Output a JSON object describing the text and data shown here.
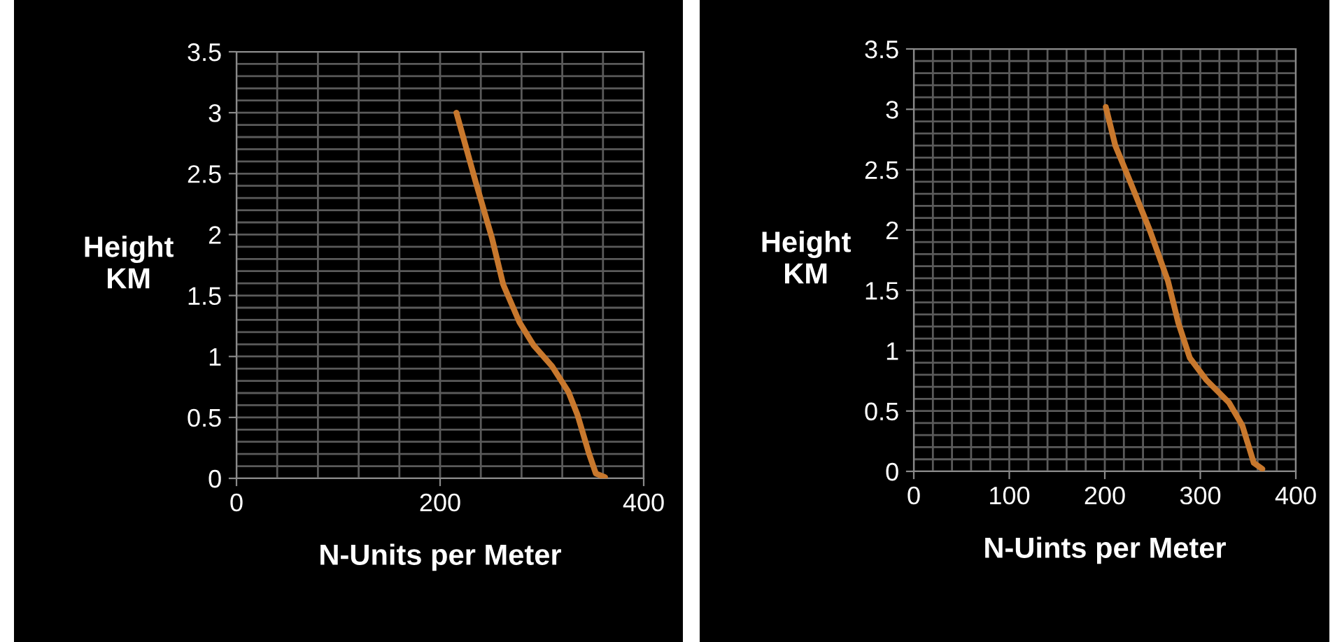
{
  "chart_data": [
    {
      "type": "line",
      "xlabel": "N-Units per Meter",
      "ylabel": "Height\nKM",
      "grid": true,
      "legend": false,
      "marker": "none",
      "line_style": "solid",
      "series": [
        {
          "color": "#c8782d",
          "x": [
            216,
            235,
            251,
            262,
            278,
            292,
            310,
            326,
            335,
            346,
            353,
            362
          ],
          "values": [
            3.0,
            2.43,
            1.97,
            1.59,
            1.28,
            1.09,
            0.92,
            0.71,
            0.52,
            0.21,
            0.04,
            0.01
          ]
        }
      ],
      "xlim": [
        0,
        400
      ],
      "ylim": [
        0,
        3.5
      ],
      "xticks": [
        0,
        {
          "value": 40,
          "label": null
        },
        {
          "value": 80,
          "label": null
        },
        {
          "value": 120,
          "label": null
        },
        {
          "value": 160,
          "label": null
        },
        200,
        {
          "value": 240,
          "label": null
        },
        {
          "value": 280,
          "label": null
        },
        {
          "value": 320,
          "label": null
        },
        {
          "value": 360,
          "label": null
        },
        400
      ],
      "yticks": [
        0,
        {
          "value": 0.1,
          "label": null
        },
        {
          "value": 0.2,
          "label": null
        },
        {
          "value": 0.3,
          "label": null
        },
        {
          "value": 0.4,
          "label": null
        },
        0.5,
        {
          "value": 0.6,
          "label": null
        },
        {
          "value": 0.7,
          "label": null
        },
        {
          "value": 0.8,
          "label": null
        },
        {
          "value": 0.9,
          "label": null
        },
        1,
        {
          "value": 1.1,
          "label": null
        },
        {
          "value": 1.2,
          "label": null
        },
        {
          "value": 1.3,
          "label": null
        },
        {
          "value": 1.4,
          "label": null
        },
        1.5,
        {
          "value": 1.6,
          "label": null
        },
        {
          "value": 1.7,
          "label": null
        },
        {
          "value": 1.8,
          "label": null
        },
        {
          "value": 1.9,
          "label": null
        },
        2,
        {
          "value": 2.1,
          "label": null
        },
        {
          "value": 2.2,
          "label": null
        },
        {
          "value": 2.3,
          "label": null
        },
        {
          "value": 2.4,
          "label": null
        },
        2.5,
        {
          "value": 2.6,
          "label": null
        },
        {
          "value": 2.7,
          "label": null
        },
        {
          "value": 2.8,
          "label": null
        },
        {
          "value": 2.9,
          "label": null
        },
        3,
        {
          "value": 3.1,
          "label": null
        },
        {
          "value": 3.2,
          "label": null
        },
        {
          "value": 3.3,
          "label": null
        },
        {
          "value": 3.4,
          "label": null
        },
        3.5
      ]
    },
    {
      "type": "line",
      "xlabel": "N-Uints per Meter",
      "ylabel": "Height\nKM",
      "grid": true,
      "legend": false,
      "marker": "none",
      "line_style": "solid",
      "series": [
        {
          "color": "#c8782d",
          "x": [
            201,
            211,
            223,
            247,
            266,
            277,
            289,
            306,
            330,
            344,
            356,
            365
          ],
          "values": [
            3.02,
            2.7,
            2.47,
            2.0,
            1.58,
            1.23,
            0.94,
            0.76,
            0.57,
            0.38,
            0.07,
            0.02
          ]
        }
      ],
      "xlim": [
        0,
        400
      ],
      "ylim": [
        0,
        3.5
      ],
      "xticks": [
        0,
        {
          "value": 20,
          "label": null
        },
        {
          "value": 40,
          "label": null
        },
        {
          "value": 60,
          "label": null
        },
        {
          "value": 80,
          "label": null
        },
        100,
        {
          "value": 120,
          "label": null
        },
        {
          "value": 140,
          "label": null
        },
        {
          "value": 160,
          "label": null
        },
        {
          "value": 180,
          "label": null
        },
        200,
        {
          "value": 220,
          "label": null
        },
        {
          "value": 240,
          "label": null
        },
        {
          "value": 260,
          "label": null
        },
        {
          "value": 280,
          "label": null
        },
        300,
        {
          "value": 320,
          "label": null
        },
        {
          "value": 340,
          "label": null
        },
        {
          "value": 360,
          "label": null
        },
        {
          "value": 380,
          "label": null
        },
        400
      ],
      "yticks": [
        0,
        {
          "value": 0.1,
          "label": null
        },
        {
          "value": 0.2,
          "label": null
        },
        {
          "value": 0.3,
          "label": null
        },
        {
          "value": 0.4,
          "label": null
        },
        0.5,
        {
          "value": 0.6,
          "label": null
        },
        {
          "value": 0.7,
          "label": null
        },
        {
          "value": 0.8,
          "label": null
        },
        {
          "value": 0.9,
          "label": null
        },
        1,
        {
          "value": 1.1,
          "label": null
        },
        {
          "value": 1.2,
          "label": null
        },
        {
          "value": 1.3,
          "label": null
        },
        {
          "value": 1.4,
          "label": null
        },
        1.5,
        {
          "value": 1.6,
          "label": null
        },
        {
          "value": 1.7,
          "label": null
        },
        {
          "value": 1.8,
          "label": null
        },
        {
          "value": 1.9,
          "label": null
        },
        2,
        {
          "value": 2.1,
          "label": null
        },
        {
          "value": 2.2,
          "label": null
        },
        {
          "value": 2.3,
          "label": null
        },
        {
          "value": 2.4,
          "label": null
        },
        2.5,
        {
          "value": 2.6,
          "label": null
        },
        {
          "value": 2.7,
          "label": null
        },
        {
          "value": 2.8,
          "label": null
        },
        {
          "value": 2.9,
          "label": null
        },
        3,
        {
          "value": 3.1,
          "label": null
        },
        {
          "value": 3.2,
          "label": null
        },
        {
          "value": 3.3,
          "label": null
        },
        {
          "value": 3.4,
          "label": null
        },
        3.5
      ]
    }
  ]
}
